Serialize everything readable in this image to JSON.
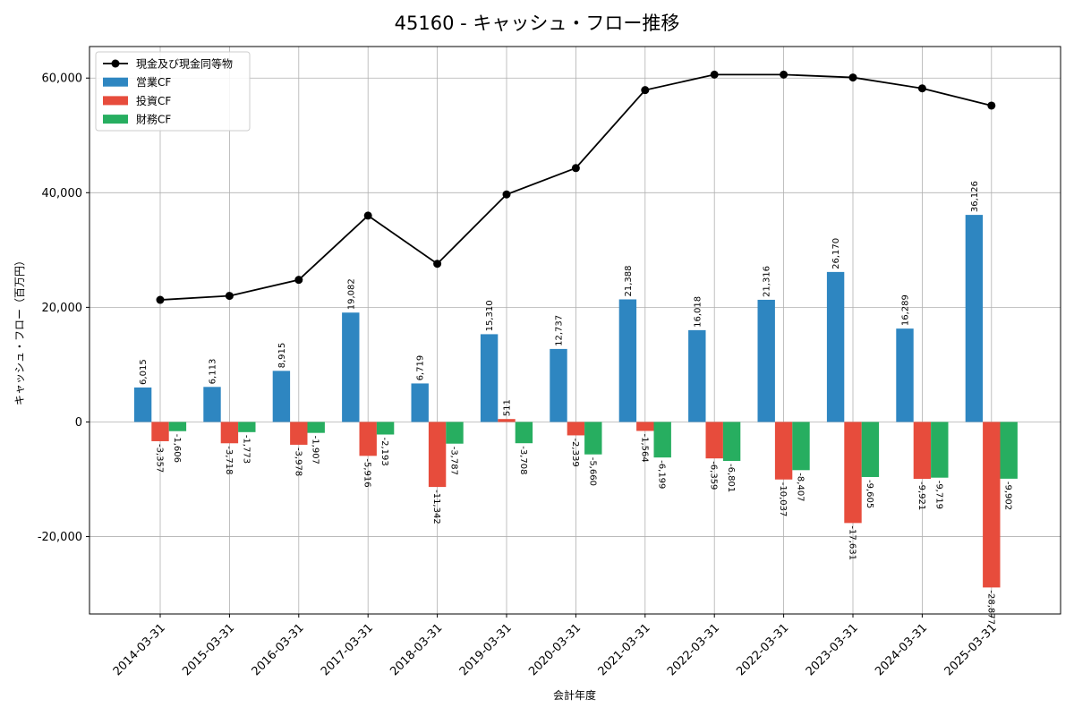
{
  "chart_data": {
    "type": "bar",
    "title": "45160 - キャッシュ・フロー推移",
    "xlabel": "会計年度",
    "ylabel": "キャッシュ・フロー（百万円）",
    "ylim": [
      -33500,
      65500
    ],
    "yticks": [
      -20000,
      0,
      20000,
      40000,
      60000
    ],
    "ytick_labels": [
      "-20,000",
      "0",
      "20,000",
      "40,000",
      "60,000"
    ],
    "grid": true,
    "legend_position": "top-left",
    "categories": [
      "2014-03-31",
      "2015-03-31",
      "2016-03-31",
      "2017-03-31",
      "2018-03-31",
      "2019-03-31",
      "2020-03-31",
      "2021-03-31",
      "2022-03-31",
      "2022-03-31",
      "2023-03-31",
      "2024-03-31",
      "2025-03-31"
    ],
    "series": [
      {
        "name": "営業CF",
        "kind": "bar",
        "color": "#2e86c1",
        "values": [
          6015,
          6113,
          8915,
          19082,
          6719,
          15310,
          12737,
          21388,
          16018,
          21316,
          26170,
          16289,
          36126
        ],
        "labels": [
          "6,015",
          "6,113",
          "8,915",
          "19,082",
          "6,719",
          "15,310",
          "12,737",
          "21,388",
          "16,018",
          "21,316",
          "26,170",
          "16,289",
          "36,126"
        ]
      },
      {
        "name": "投資CF",
        "kind": "bar",
        "color": "#e74c3c",
        "values": [
          -3357,
          -3718,
          -3978,
          -5916,
          -11342,
          511,
          -2339,
          -1564,
          -6359,
          -10037,
          -17631,
          -9921,
          -28877
        ],
        "labels": [
          "-3,357",
          "-3,718",
          "-3,978",
          "-5,916",
          "-11,342",
          "511",
          "-2,339",
          "-1,564",
          "-6,359",
          "-10,037",
          "-17,631",
          "-9,921",
          "-28,877"
        ]
      },
      {
        "name": "財務CF",
        "kind": "bar",
        "color": "#27ae60",
        "values": [
          -1606,
          -1773,
          -1907,
          -2193,
          -3787,
          -3708,
          -5660,
          -6199,
          -6801,
          -8407,
          -9605,
          -9719,
          -9902
        ],
        "labels": [
          "-1,606",
          "-1,773",
          "-1,907",
          "-2,193",
          "-3,787",
          "-3,708",
          "-5,660",
          "-6,199",
          "-6,801",
          "-8,407",
          "-9,605",
          "-9,719",
          "-9,902"
        ]
      },
      {
        "name": "現金及び現金同等物",
        "kind": "line",
        "color": "#000000",
        "values": [
          21300,
          22000,
          24800,
          36000,
          27600,
          39700,
          44300,
          57900,
          60600,
          60600,
          60100,
          58200,
          55200
        ]
      }
    ]
  }
}
